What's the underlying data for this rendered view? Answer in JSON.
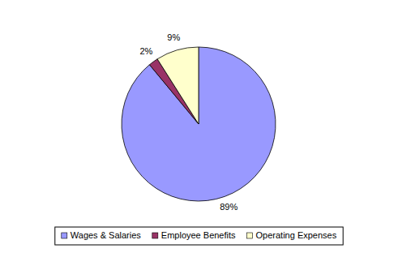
{
  "chart_data": {
    "type": "pie",
    "categories": [
      "Wages & Salaries",
      "Employee Benefits",
      "Operating Expenses"
    ],
    "values": [
      89,
      2,
      9
    ],
    "value_labels": [
      "89%",
      "2%",
      "9%"
    ],
    "colors": [
      "#9999ff",
      "#993366",
      "#ffffcc"
    ],
    "data_labels": true,
    "legend": "bottom"
  }
}
